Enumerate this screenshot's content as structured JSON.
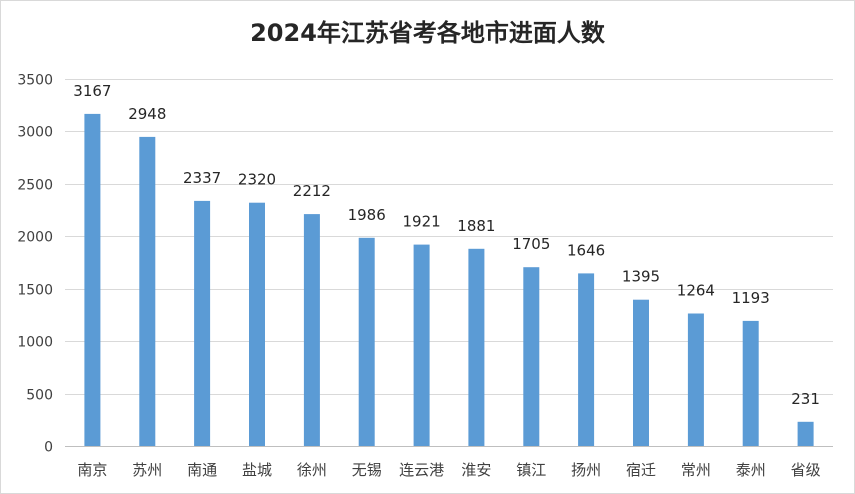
{
  "chart_data": {
    "type": "bar",
    "title": "2024年江苏省考各地市进面人数",
    "xlabel": "",
    "ylabel": "",
    "categories": [
      "南京",
      "苏州",
      "南通",
      "盐城",
      "徐州",
      "无锡",
      "连云港",
      "淮安",
      "镇江",
      "扬州",
      "宿迁",
      "常州",
      "泰州",
      "省级"
    ],
    "values": [
      3167,
      2948,
      2337,
      2320,
      2212,
      1986,
      1921,
      1881,
      1705,
      1646,
      1395,
      1264,
      1193,
      231
    ],
    "ylim": [
      0,
      3500
    ],
    "yticks": [
      0,
      500,
      1000,
      1500,
      2000,
      2500,
      3000,
      3500
    ],
    "grid": true,
    "legend": "none",
    "bar_color": "#5b9bd5",
    "data_labels": true
  }
}
